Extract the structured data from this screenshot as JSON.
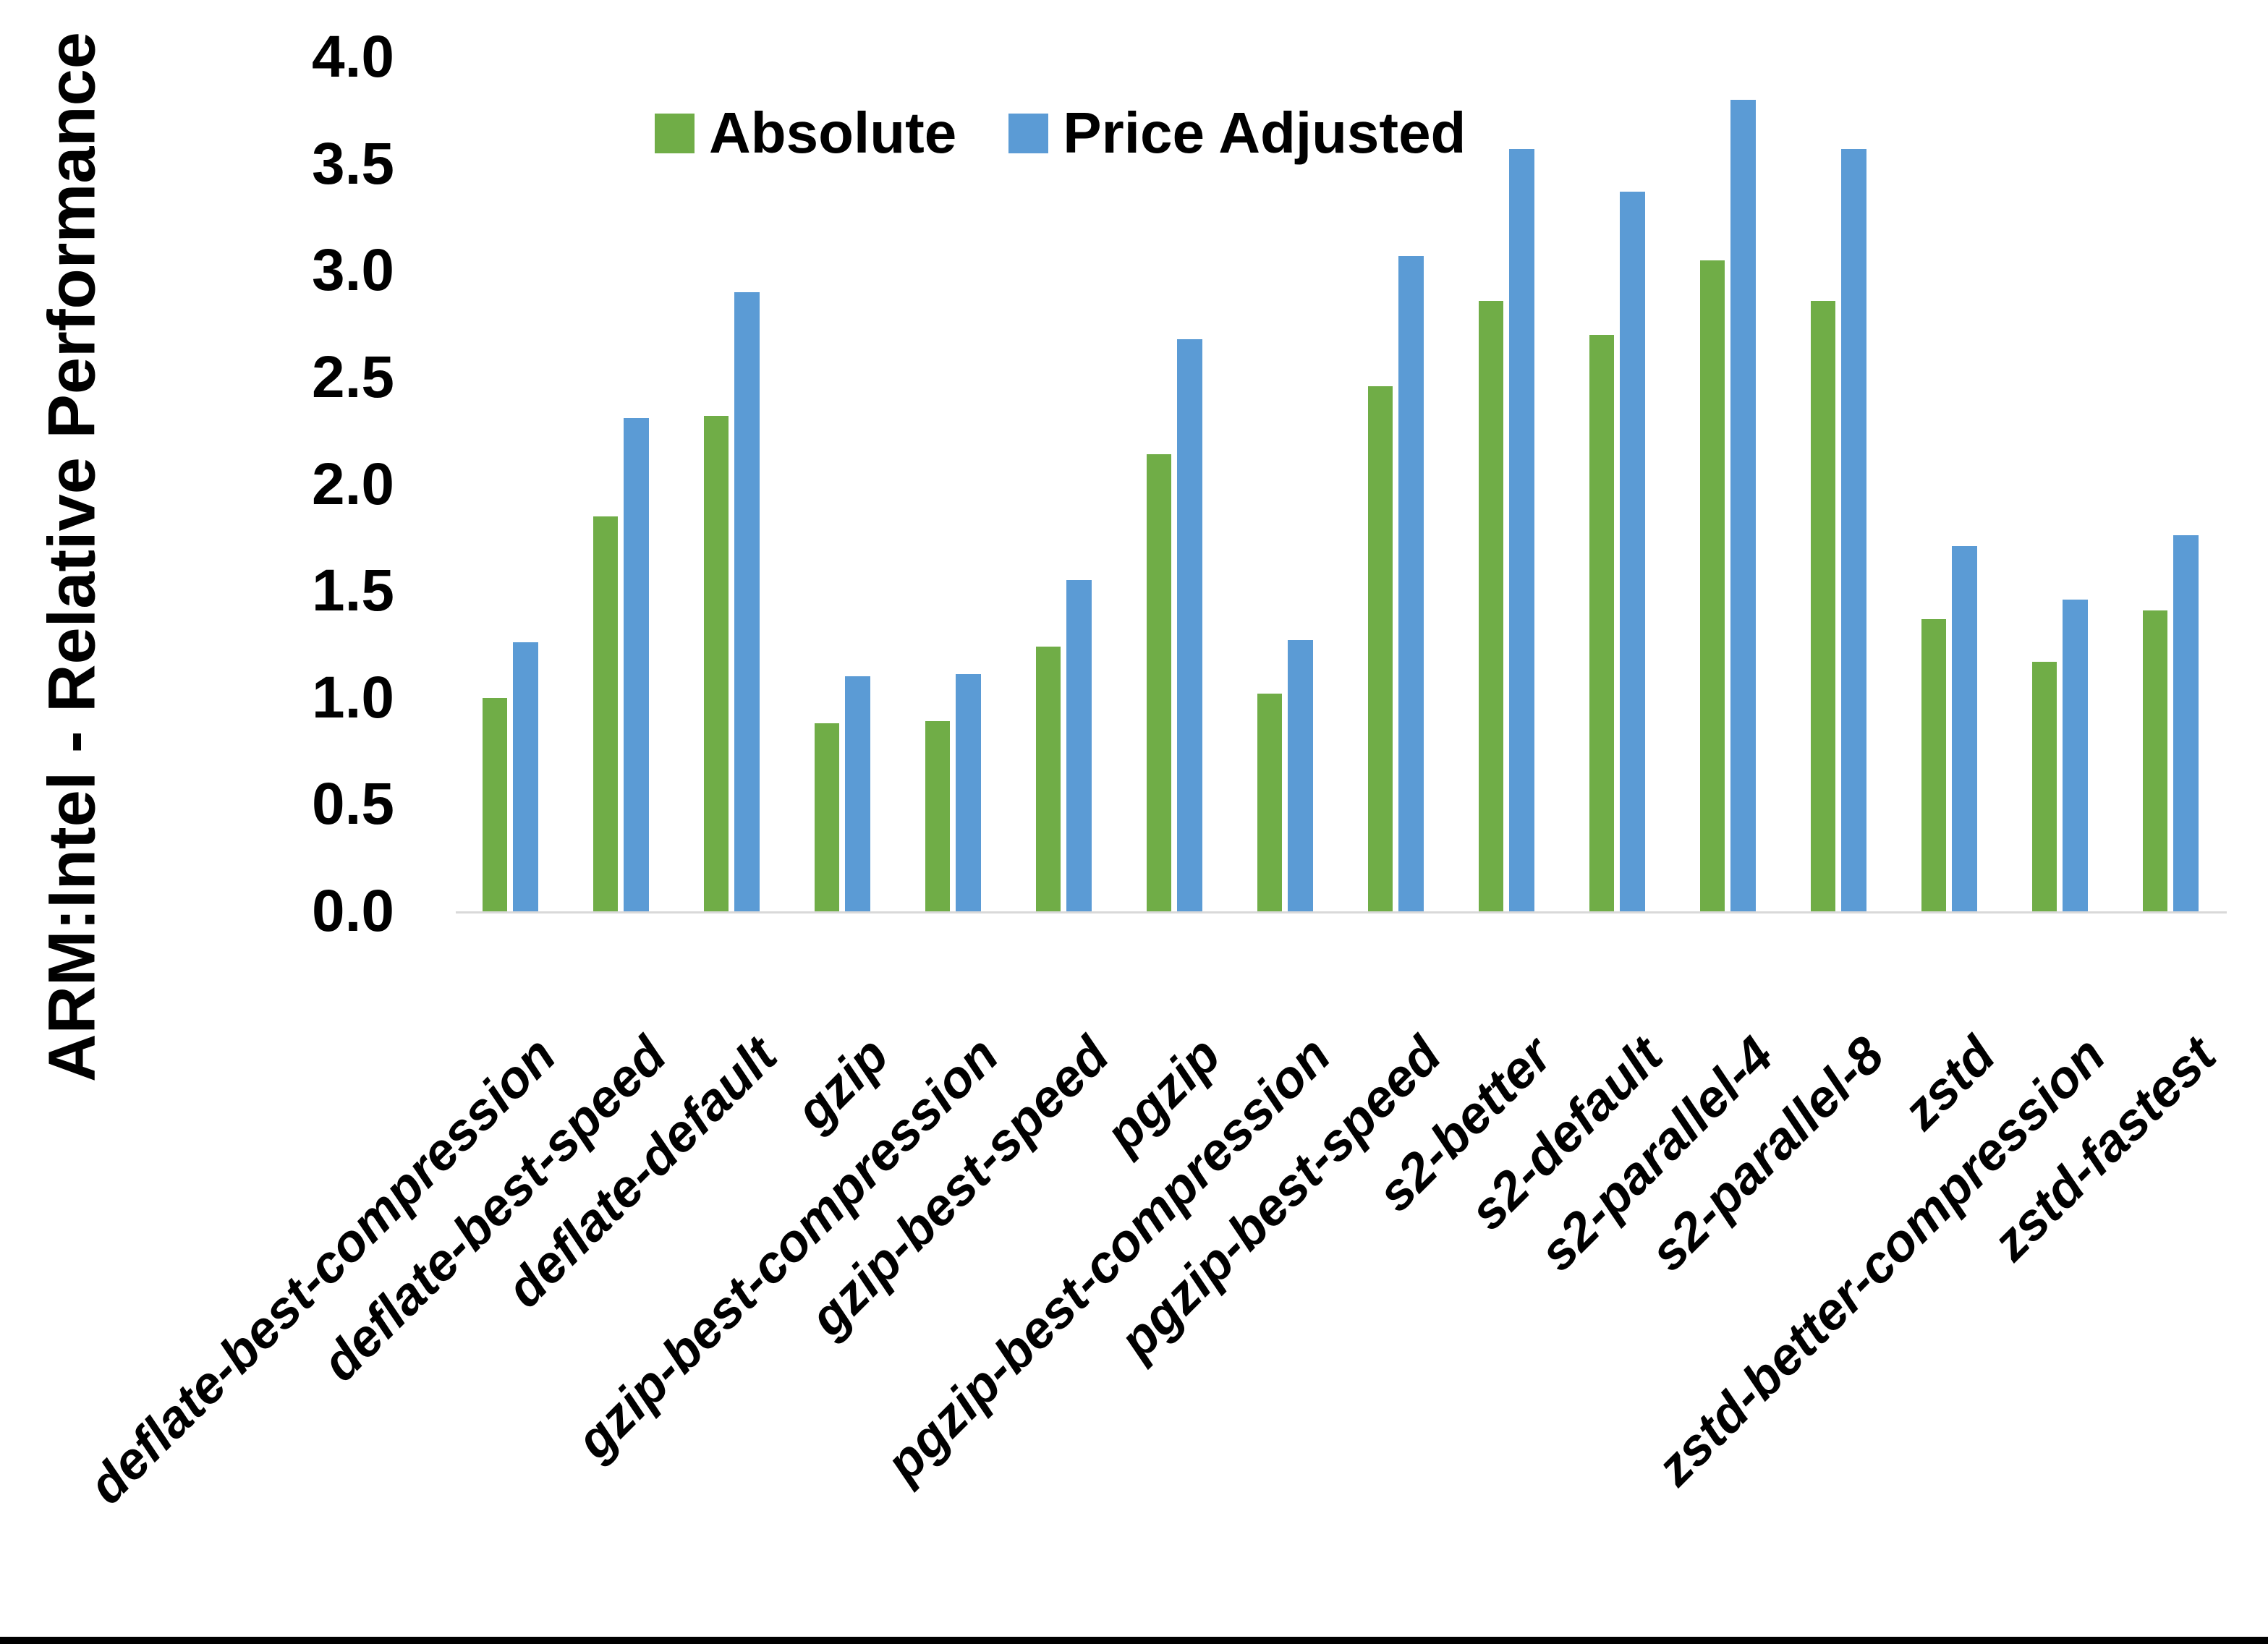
{
  "chart_data": {
    "type": "bar",
    "title": "",
    "xlabel": "",
    "ylabel": "ARM:Intel - Relative Performance",
    "ylim": [
      0.0,
      4.0
    ],
    "ytick_step": 0.5,
    "ytick_labels": [
      "0.0",
      "0.5",
      "1.0",
      "1.5",
      "2.0",
      "2.5",
      "3.0",
      "3.5",
      "4.0"
    ],
    "grid": false,
    "legend_position": "top-center",
    "axis_line_color": "#d9d9d9",
    "categories": [
      "deflate-best-compression",
      "deflate-best-speed",
      "deflate-default",
      "gzip",
      "gzip-best-compression",
      "gzip-best-speed",
      "pgzip",
      "pgzip-best-compression",
      "pgzip-best-speed",
      "s2-better",
      "s2-default",
      "s2-parallel-4",
      "s2-parallel-8",
      "zstd",
      "zstd-better-compression",
      "zstd-fastest"
    ],
    "series": [
      {
        "name": "Absolute",
        "color": "#70AD47",
        "values": [
          1.0,
          1.85,
          2.32,
          0.88,
          0.89,
          1.24,
          2.14,
          1.02,
          2.46,
          2.86,
          2.7,
          3.05,
          2.86,
          1.37,
          1.17,
          1.41
        ]
      },
      {
        "name": "Price Adjusted",
        "color": "#5B9BD5",
        "values": [
          1.26,
          2.31,
          2.9,
          1.1,
          1.11,
          1.55,
          2.68,
          1.27,
          3.07,
          3.57,
          3.37,
          3.8,
          3.57,
          1.71,
          1.46,
          1.76
        ]
      }
    ]
  },
  "legend": {
    "items": [
      {
        "label": "Absolute",
        "color": "#70AD47"
      },
      {
        "label": "Price Adjusted",
        "color": "#5B9BD5"
      }
    ]
  },
  "page": {
    "background": "#ffffff",
    "bottom_border_color": "#000000"
  }
}
